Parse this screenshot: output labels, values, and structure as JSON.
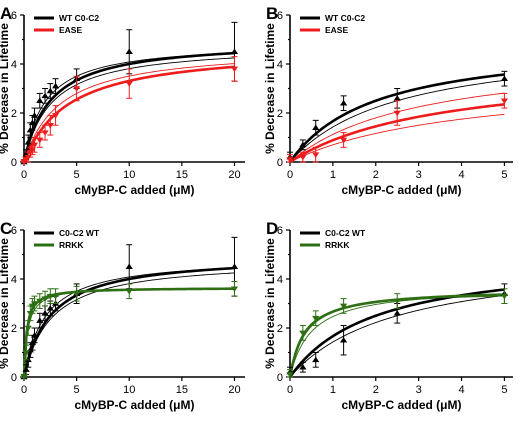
{
  "chart_data": [
    {
      "panel": "A",
      "type": "scatter",
      "xlabel": "cMyBP-C added (μM)",
      "ylabel": "% Decrease in Lifetime",
      "xlim": [
        0,
        21
      ],
      "ylim": [
        0,
        6
      ],
      "xticks": [
        0,
        5,
        10,
        15,
        20
      ],
      "yticks": [
        0,
        2,
        4,
        6
      ],
      "legend_position": "top-left",
      "series": [
        {
          "name": "WT C0-C2",
          "color": "#000000",
          "marker": "triangle-up",
          "x": [
            0,
            0.2,
            0.4,
            0.6,
            0.8,
            1,
            1.5,
            2,
            2.5,
            3,
            5,
            10,
            20
          ],
          "y": [
            0.0,
            0.3,
            0.8,
            1.3,
            1.6,
            1.9,
            2.5,
            2.7,
            2.9,
            3.1,
            3.4,
            4.5,
            4.5
          ],
          "y_err": [
            0.1,
            0.2,
            0.3,
            0.3,
            0.3,
            0.3,
            0.3,
            0.3,
            0.3,
            0.3,
            0.4,
            0.9,
            1.2
          ],
          "fit": {
            "model": "hyperbolic",
            "bmax": 5.0,
            "kd": 2.5
          }
        },
        {
          "name": "EASE",
          "color": "#ee1c1c",
          "marker": "triangle-down",
          "x": [
            0,
            0.2,
            0.4,
            0.6,
            0.8,
            1,
            1.5,
            2,
            2.5,
            3,
            5,
            10,
            20
          ],
          "y": [
            0.0,
            0.1,
            0.2,
            0.4,
            0.5,
            0.7,
            0.9,
            1.2,
            1.5,
            1.9,
            3.0,
            3.2,
            3.8
          ],
          "y_err": [
            0.1,
            0.1,
            0.2,
            0.2,
            0.2,
            0.3,
            0.3,
            0.3,
            0.4,
            0.4,
            0.5,
            0.6,
            0.5
          ],
          "fit": {
            "model": "hyperbolic",
            "bmax": 4.7,
            "kd": 4.2
          }
        }
      ],
      "thin_fits": [
        {
          "color": "#000000",
          "bmax": 4.9,
          "kd": 2.0
        },
        {
          "color": "#000000",
          "bmax": 4.8,
          "kd": 2.6
        },
        {
          "color": "#ee1c1c",
          "bmax": 4.7,
          "kd": 3.4
        }
      ]
    },
    {
      "panel": "B",
      "type": "scatter",
      "xlabel": "cMyBP-C added (μM)",
      "ylabel": "% Decrease in Lifetime",
      "xlim": [
        0,
        5.2
      ],
      "ylim": [
        0,
        6
      ],
      "xticks": [
        0,
        1,
        2,
        3,
        4,
        5
      ],
      "yticks": [
        0,
        2,
        4,
        6
      ],
      "legend_position": "top-left",
      "series": [
        {
          "name": "WT C0-C2",
          "color": "#000000",
          "marker": "triangle-up",
          "x": [
            0,
            0.3,
            0.6,
            1.25,
            2.5,
            5
          ],
          "y": [
            0.2,
            0.7,
            1.4,
            2.4,
            2.6,
            3.4
          ],
          "y_err": [
            0.2,
            0.2,
            0.3,
            0.3,
            0.4,
            0.3
          ],
          "fit": {
            "model": "hyperbolic",
            "bmax": 5.0,
            "kd": 2.0
          }
        },
        {
          "name": "EASE",
          "color": "#ee1c1c",
          "marker": "triangle-down",
          "x": [
            0,
            0.3,
            0.6,
            1.25,
            2.5,
            5
          ],
          "y": [
            0.1,
            0.2,
            0.3,
            0.9,
            2.0,
            2.5
          ],
          "y_err": [
            0.2,
            0.2,
            0.3,
            0.3,
            0.5,
            0.3
          ],
          "fit": {
            "model": "hyperbolic",
            "bmax": 4.0,
            "kd": 3.5
          }
        }
      ],
      "thin_fits": [
        {
          "color": "#000000",
          "bmax": 5.0,
          "kd": 2.5
        },
        {
          "color": "#ee1c1c",
          "bmax": 4.5,
          "kd": 3.0
        },
        {
          "color": "#ee1c1c",
          "bmax": 3.5,
          "kd": 4.0
        }
      ]
    },
    {
      "panel": "C",
      "type": "scatter",
      "xlabel": "cMyBP-C added (μM)",
      "ylabel": "% Decrease in Lifetime",
      "xlim": [
        0,
        21
      ],
      "ylim": [
        0,
        6
      ],
      "xticks": [
        0,
        5,
        10,
        15,
        20
      ],
      "yticks": [
        0,
        2,
        4,
        6
      ],
      "legend_position": "top-left",
      "series": [
        {
          "name": "C0-C2 WT",
          "color": "#000000",
          "marker": "triangle-up",
          "x": [
            0,
            0.2,
            0.4,
            0.6,
            0.8,
            1,
            1.5,
            2,
            2.5,
            3,
            5,
            10,
            20
          ],
          "y": [
            0.0,
            0.3,
            0.7,
            1.1,
            1.4,
            1.7,
            2.3,
            2.6,
            2.8,
            3.0,
            3.4,
            4.5,
            4.5
          ],
          "y_err": [
            0.1,
            0.2,
            0.3,
            0.3,
            0.3,
            0.3,
            0.3,
            0.3,
            0.3,
            0.3,
            0.4,
            0.9,
            1.2
          ],
          "fit": {
            "model": "hyperbolic",
            "bmax": 5.0,
            "kd": 2.5
          }
        },
        {
          "name": "RRKK",
          "color": "#2e6f14",
          "marker": "triangle-down",
          "x": [
            0,
            0.2,
            0.4,
            0.6,
            0.8,
            1,
            1.5,
            2,
            2.5,
            3,
            5,
            10,
            20
          ],
          "y": [
            0.0,
            1.0,
            2.0,
            2.6,
            2.9,
            3.0,
            3.1,
            3.2,
            3.3,
            3.3,
            3.4,
            3.5,
            3.6
          ],
          "y_err": [
            0.1,
            0.3,
            0.3,
            0.3,
            0.3,
            0.3,
            0.3,
            0.3,
            0.3,
            0.3,
            0.3,
            0.3,
            0.3
          ],
          "fit": {
            "model": "hyperbolic",
            "bmax": 3.65,
            "kd": 0.25
          }
        }
      ],
      "thin_fits": [
        {
          "color": "#000000",
          "bmax": 4.9,
          "kd": 2.0
        },
        {
          "color": "#000000",
          "bmax": 4.8,
          "kd": 2.6
        },
        {
          "color": "#2e6f14",
          "bmax": 3.7,
          "kd": 0.35
        }
      ]
    },
    {
      "panel": "D",
      "type": "scatter",
      "xlabel": "cMyBP-C added (μM)",
      "ylabel": "% Decrease in Lifetime",
      "xlim": [
        0,
        5.2
      ],
      "ylim": [
        0,
        6
      ],
      "xticks": [
        0,
        1,
        2,
        3,
        4,
        5
      ],
      "yticks": [
        0,
        2,
        4,
        6
      ],
      "legend_position": "top-left",
      "series": [
        {
          "name": "C0-C2 WT",
          "color": "#000000",
          "marker": "triangle-up",
          "x": [
            0,
            0.3,
            0.6,
            1.25,
            2.5,
            5
          ],
          "y": [
            0.2,
            0.4,
            0.7,
            1.5,
            2.6,
            3.4
          ],
          "y_err": [
            0.2,
            0.2,
            0.3,
            0.6,
            0.4,
            0.4
          ],
          "fit": {
            "model": "hyperbolic",
            "bmax": 5.0,
            "kd": 2.0
          }
        },
        {
          "name": "RRKK",
          "color": "#2e6f14",
          "marker": "triangle-down",
          "x": [
            0,
            0.3,
            0.6,
            1.25,
            2.5,
            5
          ],
          "y": [
            0.1,
            1.8,
            2.4,
            2.9,
            3.1,
            3.3
          ],
          "y_err": [
            0.2,
            0.3,
            0.3,
            0.3,
            0.3,
            0.3
          ],
          "fit": {
            "model": "hyperbolic",
            "bmax": 3.6,
            "kd": 0.35
          }
        }
      ],
      "thin_fits": [
        {
          "color": "#000000",
          "bmax": 5.0,
          "kd": 2.5
        },
        {
          "color": "#2e6f14",
          "bmax": 3.7,
          "kd": 0.5
        },
        {
          "color": "#2e6f14",
          "bmax": 3.5,
          "kd": 0.3
        }
      ]
    }
  ]
}
